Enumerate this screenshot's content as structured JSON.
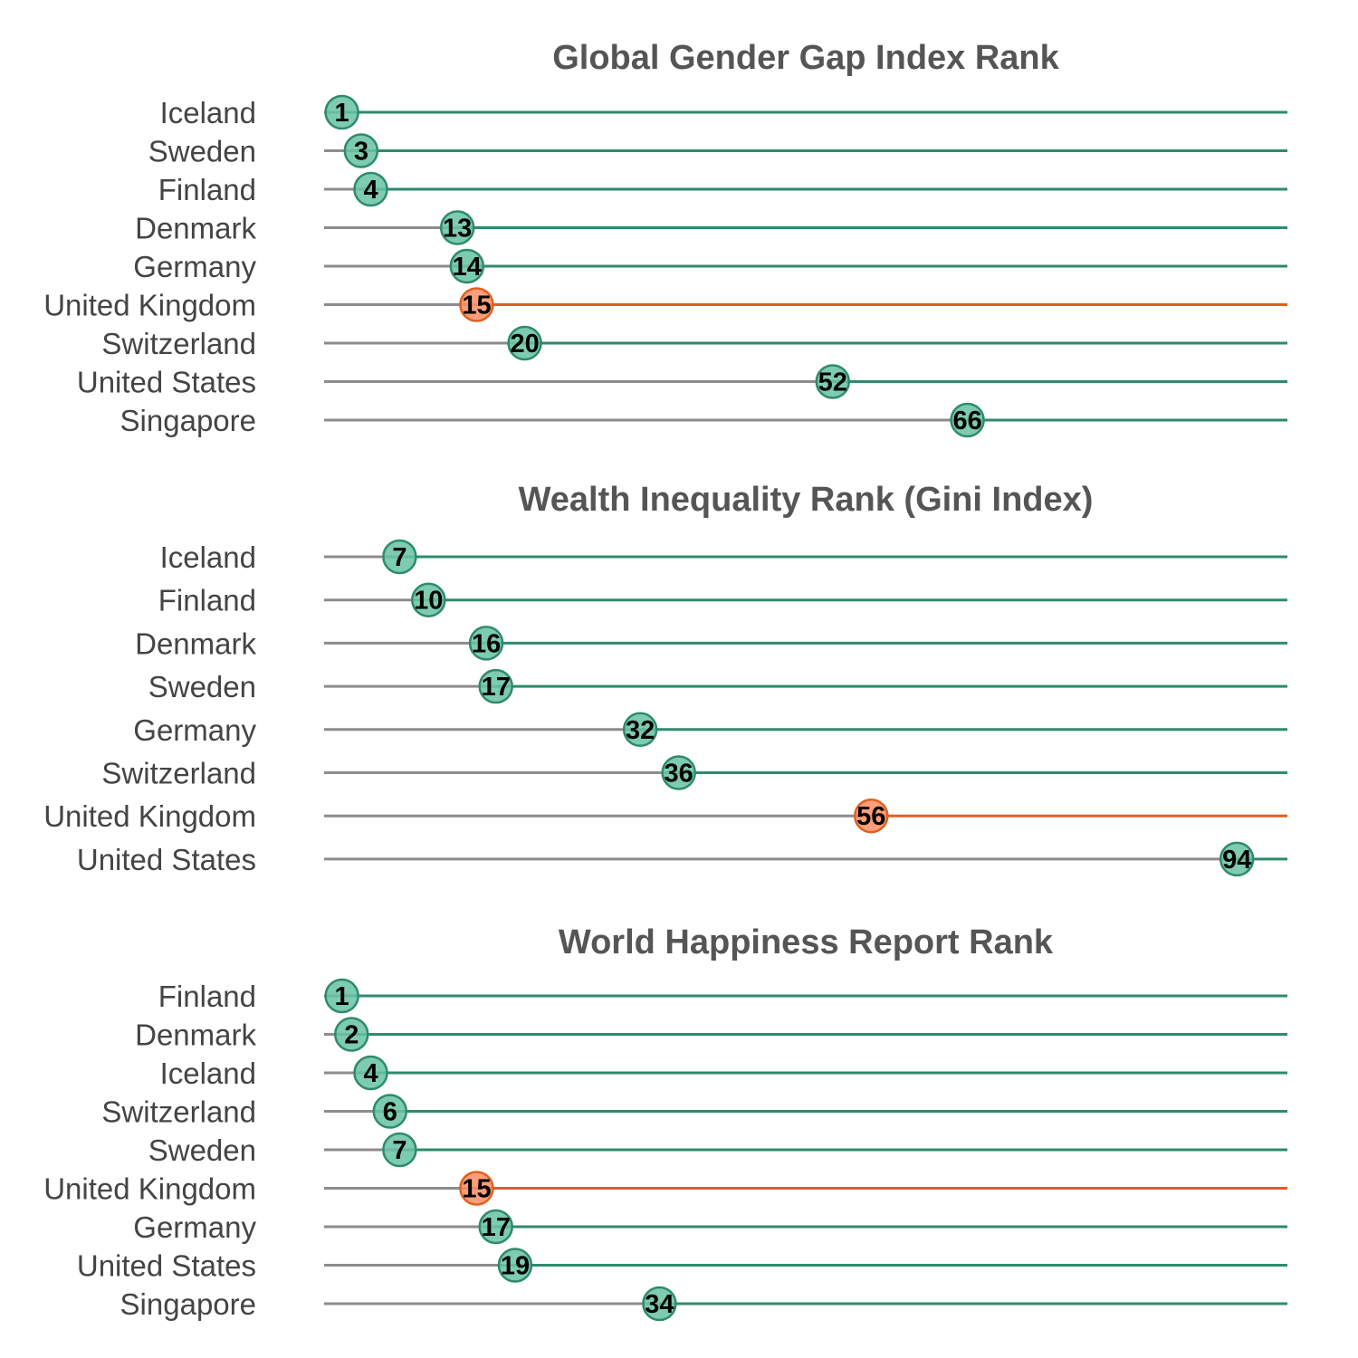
{
  "colors": {
    "baseline": "#8c8c8c",
    "default_line": "#2e8b6a",
    "default_dot": "#66c2a5",
    "highlight_line": "#e0601e",
    "highlight_dot": "#fc8d62",
    "title": "#555555",
    "label": "#444444"
  },
  "chart_data": [
    {
      "type": "lollipop",
      "title": "Global Gender Gap Index Rank",
      "highlight": "United Kingdom",
      "xlim": [
        0,
        100
      ],
      "categories": [
        "Iceland",
        "Sweden",
        "Finland",
        "Denmark",
        "Germany",
        "United Kingdom",
        "Switzerland",
        "United States",
        "Singapore"
      ],
      "values": [
        1,
        3,
        4,
        13,
        14,
        15,
        20,
        52,
        66
      ]
    },
    {
      "type": "lollipop",
      "title": "Wealth Inequality Rank (Gini Index)",
      "highlight": "United Kingdom",
      "xlim": [
        0,
        100
      ],
      "categories": [
        "Iceland",
        "Finland",
        "Denmark",
        "Sweden",
        "Germany",
        "Switzerland",
        "United Kingdom",
        "United States"
      ],
      "values": [
        7,
        10,
        16,
        17,
        32,
        36,
        56,
        94
      ]
    },
    {
      "type": "lollipop",
      "title": "World Happiness Report Rank",
      "highlight": "United Kingdom",
      "xlim": [
        0,
        100
      ],
      "categories": [
        "Finland",
        "Denmark",
        "Iceland",
        "Switzerland",
        "Sweden",
        "United Kingdom",
        "Germany",
        "United States",
        "Singapore"
      ],
      "values": [
        1,
        2,
        4,
        6,
        7,
        15,
        17,
        19,
        34
      ]
    }
  ]
}
